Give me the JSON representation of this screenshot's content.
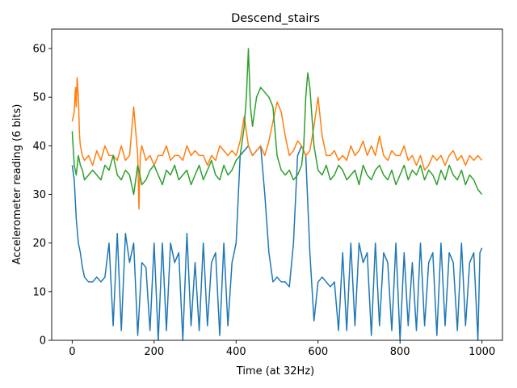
{
  "chart_data": {
    "type": "line",
    "title": "Descend_stairs",
    "xlabel": "Time (at 32Hz)",
    "ylabel": "Accelerometer reading (6 bits)",
    "xlim": [
      -50,
      1050
    ],
    "ylim": [
      0,
      64
    ],
    "xticks": [
      0,
      200,
      400,
      600,
      800,
      1000
    ],
    "yticks": [
      0,
      10,
      20,
      30,
      40,
      50,
      60
    ],
    "grid": false,
    "legend": "none",
    "series": [
      {
        "color": "#1f77b4",
        "x": [
          0,
          5,
          10,
          15,
          20,
          25,
          30,
          40,
          50,
          60,
          70,
          80,
          90,
          100,
          110,
          120,
          130,
          140,
          150,
          160,
          170,
          180,
          190,
          200,
          210,
          220,
          230,
          240,
          250,
          260,
          270,
          280,
          290,
          300,
          310,
          320,
          330,
          340,
          350,
          360,
          370,
          380,
          390,
          400,
          410,
          420,
          430,
          440,
          450,
          460,
          470,
          480,
          490,
          500,
          510,
          520,
          530,
          540,
          550,
          560,
          570,
          580,
          590,
          600,
          610,
          620,
          630,
          640,
          650,
          660,
          670,
          680,
          690,
          700,
          710,
          720,
          730,
          740,
          750,
          760,
          770,
          780,
          790,
          800,
          810,
          820,
          830,
          840,
          850,
          860,
          870,
          880,
          890,
          900,
          910,
          920,
          930,
          940,
          950,
          960,
          970,
          980,
          990,
          995,
          1000
        ],
        "y": [
          36,
          33,
          25,
          20,
          18,
          15,
          13,
          12,
          12,
          13,
          12,
          13,
          20,
          3,
          22,
          2,
          22,
          16,
          20,
          1,
          16,
          15,
          2,
          20,
          0,
          20,
          2,
          20,
          16,
          18,
          0,
          22,
          3,
          16,
          2,
          20,
          3,
          16,
          18,
          1,
          20,
          3,
          16,
          20,
          38,
          39,
          40,
          38,
          39,
          40,
          30,
          18,
          12,
          13,
          12,
          12,
          11,
          20,
          38,
          40,
          38,
          18,
          4,
          12,
          13,
          12,
          11,
          12,
          2,
          18,
          2,
          20,
          3,
          20,
          16,
          18,
          1,
          20,
          3,
          18,
          16,
          2,
          20,
          0,
          18,
          3,
          16,
          2,
          20,
          3,
          16,
          18,
          1,
          20,
          3,
          18,
          16,
          2,
          20,
          3,
          16,
          18,
          0,
          18,
          19
        ]
      },
      {
        "color": "#ff7f0e",
        "x": [
          0,
          5,
          8,
          10,
          12,
          15,
          18,
          20,
          25,
          30,
          40,
          50,
          60,
          70,
          80,
          90,
          100,
          110,
          120,
          130,
          140,
          150,
          160,
          163,
          166,
          170,
          180,
          190,
          200,
          210,
          220,
          230,
          240,
          250,
          260,
          270,
          280,
          290,
          300,
          310,
          320,
          330,
          340,
          350,
          360,
          370,
          380,
          390,
          400,
          410,
          420,
          430,
          440,
          450,
          460,
          470,
          480,
          490,
          500,
          510,
          520,
          530,
          540,
          550,
          560,
          570,
          580,
          590,
          600,
          610,
          620,
          630,
          640,
          650,
          660,
          670,
          680,
          690,
          700,
          710,
          720,
          730,
          740,
          750,
          760,
          770,
          780,
          790,
          800,
          810,
          820,
          830,
          840,
          850,
          860,
          870,
          880,
          890,
          900,
          910,
          920,
          930,
          940,
          950,
          960,
          970,
          980,
          990,
          1000
        ],
        "y": [
          45,
          47,
          52,
          48,
          54,
          50,
          42,
          40,
          38,
          37,
          38,
          36,
          39,
          37,
          40,
          38,
          38,
          37,
          40,
          37,
          38,
          48,
          38,
          27,
          38,
          40,
          37,
          38,
          36,
          38,
          38,
          40,
          37,
          38,
          38,
          37,
          40,
          38,
          39,
          38,
          38,
          36,
          38,
          37,
          40,
          39,
          38,
          39,
          38,
          41,
          46,
          40,
          38,
          39,
          40,
          38,
          41,
          45,
          49,
          47,
          42,
          38,
          39,
          41,
          40,
          38,
          39,
          44,
          50,
          42,
          38,
          38,
          39,
          37,
          38,
          37,
          40,
          38,
          39,
          41,
          38,
          40,
          38,
          42,
          38,
          37,
          39,
          38,
          38,
          40,
          37,
          38,
          36,
          38,
          35,
          36,
          38,
          37,
          38,
          36,
          38,
          39,
          37,
          38,
          36,
          38,
          37,
          38,
          37
        ]
      },
      {
        "color": "#2ca02c",
        "x": [
          0,
          5,
          10,
          15,
          20,
          25,
          30,
          40,
          50,
          60,
          70,
          80,
          90,
          100,
          110,
          120,
          130,
          140,
          150,
          160,
          170,
          180,
          190,
          200,
          210,
          220,
          230,
          240,
          250,
          260,
          270,
          280,
          290,
          300,
          310,
          320,
          330,
          340,
          350,
          360,
          370,
          380,
          390,
          400,
          410,
          420,
          425,
          430,
          435,
          440,
          450,
          460,
          470,
          480,
          490,
          500,
          510,
          520,
          530,
          540,
          550,
          560,
          565,
          570,
          575,
          580,
          590,
          600,
          610,
          620,
          630,
          640,
          650,
          660,
          670,
          680,
          690,
          700,
          710,
          720,
          730,
          740,
          750,
          760,
          770,
          780,
          790,
          800,
          810,
          820,
          830,
          840,
          850,
          860,
          870,
          880,
          890,
          900,
          910,
          920,
          930,
          940,
          950,
          960,
          970,
          980,
          990,
          1000
        ],
        "y": [
          43,
          36,
          34,
          38,
          36,
          35,
          33,
          34,
          35,
          34,
          33,
          36,
          35,
          38,
          34,
          33,
          35,
          34,
          30,
          36,
          32,
          33,
          35,
          36,
          34,
          32,
          35,
          34,
          36,
          33,
          34,
          35,
          32,
          34,
          36,
          33,
          35,
          37,
          34,
          33,
          36,
          34,
          35,
          37,
          38,
          44,
          50,
          60,
          48,
          44,
          50,
          52,
          51,
          50,
          48,
          38,
          35,
          34,
          35,
          33,
          34,
          36,
          40,
          50,
          55,
          52,
          40,
          35,
          34,
          36,
          33,
          34,
          36,
          35,
          33,
          34,
          35,
          32,
          36,
          34,
          33,
          35,
          36,
          34,
          33,
          35,
          32,
          34,
          36,
          33,
          35,
          34,
          36,
          33,
          35,
          34,
          32,
          35,
          33,
          36,
          34,
          33,
          35,
          32,
          34,
          33,
          31,
          30
        ]
      }
    ]
  }
}
